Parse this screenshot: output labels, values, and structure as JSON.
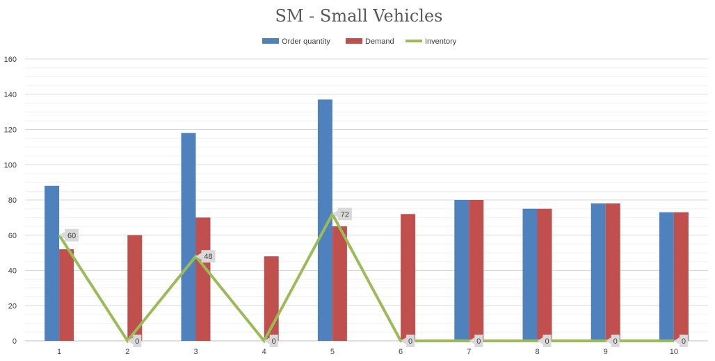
{
  "chart_data": {
    "type": "bar",
    "title": "SM - Small Vehicles",
    "categories": [
      "1",
      "2",
      "3",
      "4",
      "5",
      "6",
      "7",
      "8",
      "9",
      "10"
    ],
    "series": [
      {
        "name": "Order quantity",
        "kind": "bar",
        "color": "#4F81BD",
        "values": [
          88,
          0,
          118,
          0,
          137,
          0,
          80,
          75,
          78,
          73
        ]
      },
      {
        "name": "Demand",
        "kind": "bar",
        "color": "#C0504D",
        "values": [
          52,
          60,
          70,
          48,
          65,
          72,
          80,
          75,
          78,
          73
        ]
      },
      {
        "name": "Inventory",
        "kind": "line",
        "color": "#9BBB59",
        "values": [
          60,
          0,
          48,
          0,
          72,
          0,
          0,
          0,
          0,
          0
        ],
        "data_labels": [
          "60",
          "0",
          "48",
          "0",
          "72",
          "0",
          "0",
          "0",
          "0",
          "0"
        ]
      }
    ],
    "ylim": [
      0,
      160
    ],
    "yticks": [
      "0",
      "20",
      "40",
      "60",
      "80",
      "100",
      "120",
      "140",
      "160"
    ],
    "grid": true,
    "legend_position": "top"
  }
}
